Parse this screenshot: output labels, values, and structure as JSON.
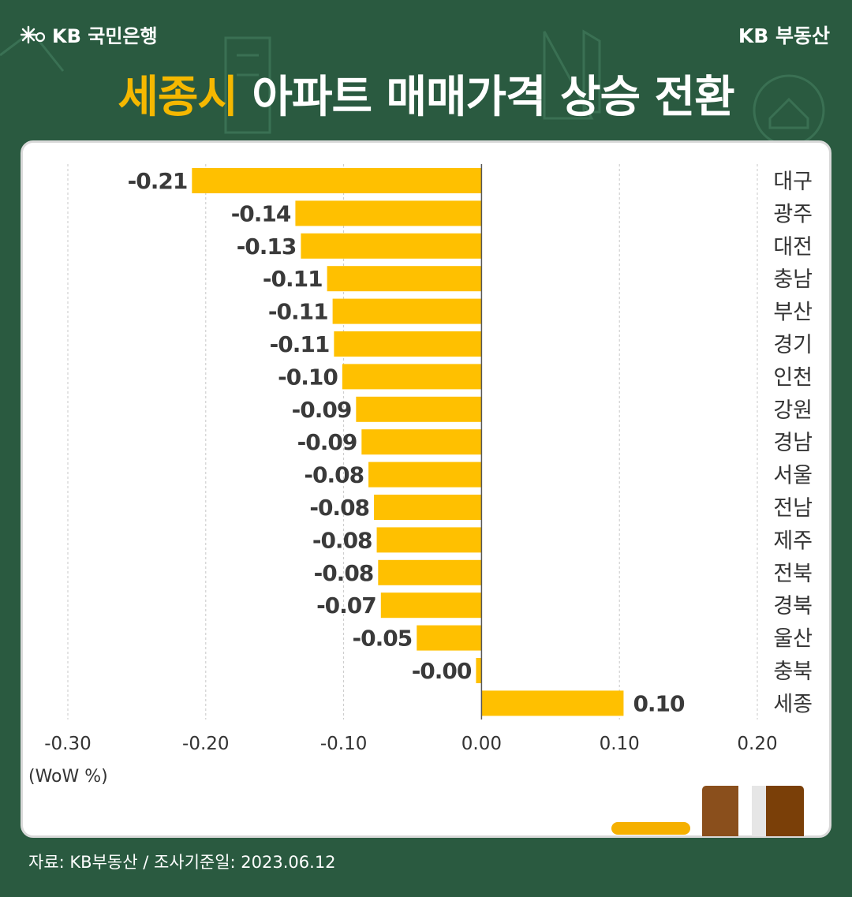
{
  "brand": {
    "left": "KB 국민은행",
    "right": "KB 부동산"
  },
  "title": {
    "highlight": "세종시",
    "rest": " 아파트 매매가격 상승 전환"
  },
  "colors": {
    "background": "#2a5a40",
    "accent": "#f5b800",
    "bar": "#ffc000"
  },
  "unit_label": "(WoW %)",
  "footer": "자료: KB부동산 / 조사기준일: 2023.06.12",
  "chart_data": {
    "type": "bar",
    "orientation": "horizontal",
    "categories": [
      "대구",
      "광주",
      "대전",
      "충남",
      "부산",
      "경기",
      "인천",
      "강원",
      "경남",
      "서울",
      "전남",
      "제주",
      "전북",
      "경북",
      "울산",
      "충북",
      "세종"
    ],
    "values": [
      -0.21,
      -0.135,
      -0.131,
      -0.112,
      -0.108,
      -0.107,
      -0.101,
      -0.091,
      -0.087,
      -0.082,
      -0.078,
      -0.076,
      -0.075,
      -0.073,
      -0.047,
      -0.004,
      0.103
    ],
    "data_labels": [
      "-0.21",
      "-0.14",
      "-0.13",
      "-0.11",
      "-0.11",
      "-0.11",
      "-0.10",
      "-0.09",
      "-0.09",
      "-0.08",
      "-0.08",
      "-0.08",
      "-0.08",
      "-0.07",
      "-0.05",
      "-0.00",
      "0.10"
    ],
    "xlim": [
      -0.3,
      0.2
    ],
    "xticks": [
      -0.3,
      -0.2,
      -0.1,
      0.0,
      0.1,
      0.2
    ],
    "xtick_labels": [
      "-0.30",
      "-0.20",
      "-0.10",
      "0.00",
      "0.10",
      "0.20"
    ],
    "xlabel": "(WoW %)",
    "grid": "vertical dashed",
    "category_labels_position": "right"
  }
}
